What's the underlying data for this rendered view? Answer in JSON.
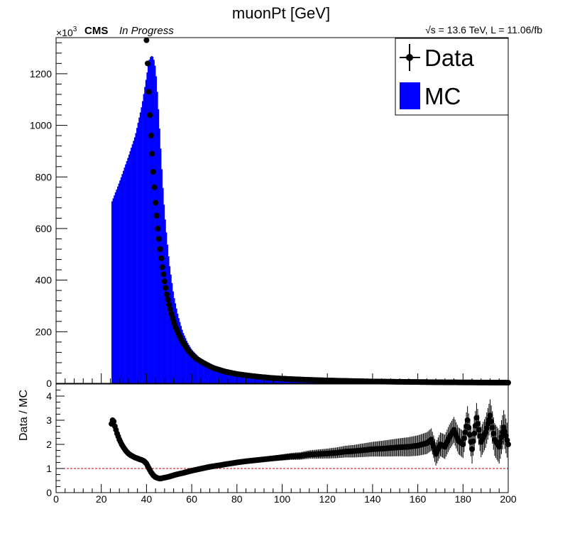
{
  "chart_data": [
    {
      "panel": "main",
      "type": "bar",
      "title": "muonPt [GeV]",
      "xlim": [
        0,
        200
      ],
      "ylim": [
        0,
        1340
      ],
      "y_multiplier_label": "×10",
      "y_multiplier_exponent": "3",
      "yticks": [
        0,
        200,
        400,
        600,
        800,
        1000,
        1200
      ],
      "experiment": "CMS",
      "status": "In Progress",
      "energy_lumi_prefix": "√",
      "energy_lumi_text": "s = 13.6 TeV, L = 11.06/fb",
      "legend": {
        "position": "top-right",
        "entries": [
          "Data",
          "MC"
        ]
      },
      "series": [
        {
          "name": "MC",
          "style": "filled-histogram",
          "color": "#0000ff",
          "points": [
            [
              24,
              0
            ],
            [
              24.5,
              700
            ],
            [
              28,
              780
            ],
            [
              32,
              880
            ],
            [
              35,
              960
            ],
            [
              38,
              1080
            ],
            [
              40,
              1190
            ],
            [
              41,
              1250
            ],
            [
              42,
              1270
            ],
            [
              43,
              1265
            ],
            [
              44,
              1220
            ],
            [
              45,
              1100
            ],
            [
              46,
              950
            ],
            [
              47,
              790
            ],
            [
              48,
              660
            ],
            [
              49,
              560
            ],
            [
              50,
              470
            ],
            [
              52,
              340
            ],
            [
              54,
              260
            ],
            [
              56,
              200
            ],
            [
              58,
              160
            ],
            [
              60,
              130
            ],
            [
              65,
              85
            ],
            [
              70,
              60
            ],
            [
              75,
              45
            ],
            [
              80,
              35
            ],
            [
              90,
              22
            ],
            [
              100,
              15
            ],
            [
              110,
              11
            ],
            [
              120,
              8
            ],
            [
              140,
              5
            ],
            [
              160,
              3
            ],
            [
              180,
              2
            ],
            [
              200,
              1
            ]
          ]
        },
        {
          "name": "Data",
          "style": "markers",
          "color": "#000000",
          "points": [
            [
              40,
              1330
            ],
            [
              40.5,
              1240
            ],
            [
              41,
              1130
            ],
            [
              41.5,
              1040
            ],
            [
              42,
              960
            ],
            [
              42.5,
              890
            ],
            [
              43,
              820
            ],
            [
              43.5,
              760
            ],
            [
              44,
              700
            ],
            [
              44.5,
              650
            ],
            [
              45,
              600
            ],
            [
              45.5,
              560
            ],
            [
              46,
              520
            ],
            [
              47,
              450
            ],
            [
              48,
              395
            ],
            [
              49,
              345
            ],
            [
              50,
              305
            ],
            [
              51,
              270
            ],
            [
              52,
              240
            ],
            [
              53,
              215
            ],
            [
              54,
              195
            ],
            [
              56,
              160
            ],
            [
              58,
              133
            ],
            [
              60,
              112
            ],
            [
              62,
              96
            ],
            [
              65,
              80
            ],
            [
              68,
              66
            ],
            [
              70,
              58
            ],
            [
              75,
              45
            ],
            [
              80,
              36
            ],
            [
              85,
              30
            ],
            [
              90,
              25
            ],
            [
              95,
              21
            ],
            [
              100,
              18
            ],
            [
              110,
              14
            ],
            [
              120,
              11
            ],
            [
              130,
              9
            ],
            [
              140,
              7
            ],
            [
              150,
              6
            ],
            [
              160,
              5
            ],
            [
              170,
              4
            ],
            [
              180,
              3.5
            ],
            [
              190,
              3
            ],
            [
              200,
              2.5
            ]
          ]
        }
      ]
    },
    {
      "panel": "ratio",
      "type": "scatter",
      "ylabel": "Data / MC",
      "xlim": [
        0,
        200
      ],
      "ylim": [
        0,
        4.5
      ],
      "xticks": [
        0,
        20,
        40,
        60,
        80,
        100,
        120,
        140,
        160,
        180,
        200
      ],
      "yticks": [
        0,
        1,
        2,
        3,
        4
      ],
      "reference_line": {
        "y": 1,
        "color": "#cc0000",
        "style": "dashed"
      },
      "series": [
        {
          "name": "Data / MC",
          "color": "#000000",
          "points": [
            [
              24.5,
              2.85
            ],
            [
              25,
              3.0
            ],
            [
              25.5,
              2.95
            ],
            [
              26,
              2.75
            ],
            [
              27,
              2.45
            ],
            [
              28,
              2.2
            ],
            [
              29,
              2.0
            ],
            [
              30,
              1.85
            ],
            [
              31,
              1.72
            ],
            [
              32,
              1.62
            ],
            [
              33,
              1.55
            ],
            [
              34,
              1.5
            ],
            [
              35,
              1.45
            ],
            [
              36,
              1.42
            ],
            [
              37,
              1.38
            ],
            [
              38,
              1.35
            ],
            [
              39,
              1.3
            ],
            [
              40,
              1.2
            ],
            [
              41,
              1.02
            ],
            [
              42,
              0.85
            ],
            [
              43,
              0.72
            ],
            [
              44,
              0.64
            ],
            [
              45,
              0.6
            ],
            [
              46,
              0.58
            ],
            [
              47,
              0.6
            ],
            [
              48,
              0.62
            ],
            [
              50,
              0.66
            ],
            [
              52,
              0.72
            ],
            [
              54,
              0.77
            ],
            [
              56,
              0.81
            ],
            [
              58,
              0.86
            ],
            [
              60,
              0.91
            ],
            [
              62,
              0.95
            ],
            [
              64,
              0.99
            ],
            [
              66,
              1.03
            ],
            [
              68,
              1.07
            ],
            [
              70,
              1.1
            ],
            [
              72,
              1.13
            ],
            [
              74,
              1.16
            ],
            [
              76,
              1.19
            ],
            [
              78,
              1.22
            ],
            [
              80,
              1.25
            ],
            [
              84,
              1.3
            ],
            [
              88,
              1.34
            ],
            [
              92,
              1.38
            ],
            [
              96,
              1.42
            ],
            [
              100,
              1.46
            ],
            [
              104,
              1.5
            ],
            [
              108,
              1.52
            ],
            [
              112,
              1.58
            ],
            [
              116,
              1.6
            ],
            [
              120,
              1.62
            ],
            [
              124,
              1.65
            ],
            [
              128,
              1.7
            ],
            [
              132,
              1.72
            ],
            [
              136,
              1.76
            ],
            [
              140,
              1.8
            ],
            [
              144,
              1.82
            ],
            [
              148,
              1.85
            ],
            [
              152,
              1.88
            ],
            [
              156,
              1.9
            ],
            [
              160,
              1.95
            ],
            [
              164,
              2.05
            ],
            [
              166,
              2.2
            ],
            [
              168,
              1.6
            ],
            [
              170,
              2.0
            ],
            [
              172,
              1.9
            ],
            [
              174,
              2.3
            ],
            [
              176,
              2.6
            ],
            [
              178,
              2.15
            ],
            [
              180,
              2.0
            ],
            [
              182,
              3.0
            ],
            [
              184,
              1.8
            ],
            [
              186,
              3.1
            ],
            [
              188,
              2.1
            ],
            [
              190,
              2.5
            ],
            [
              192,
              3.2
            ],
            [
              194,
              2.2
            ],
            [
              196,
              1.9
            ],
            [
              198,
              2.7
            ],
            [
              200,
              2.0
            ]
          ]
        }
      ]
    }
  ]
}
